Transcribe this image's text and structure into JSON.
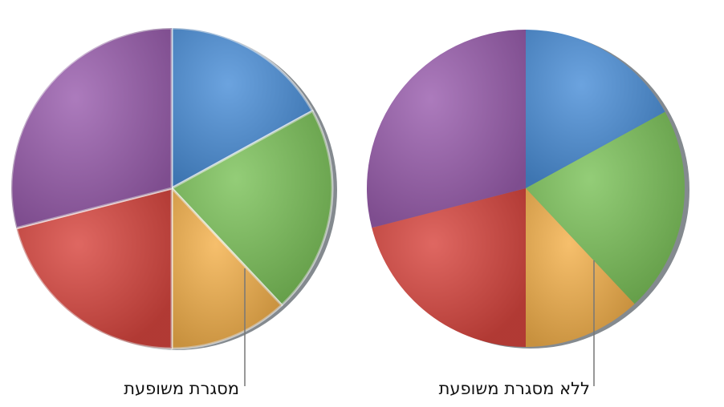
{
  "chart_data": [
    {
      "type": "pie",
      "annotation": "מסגרת משופעת",
      "bevel": true,
      "values": [
        17,
        21,
        12,
        21,
        29
      ],
      "colors": [
        "#4b8fd8",
        "#7cc25a",
        "#f4b14c",
        "#d8463f",
        "#9a5eae"
      ]
    },
    {
      "type": "pie",
      "annotation": "ללא מסגרת משופעת",
      "bevel": false,
      "values": [
        17,
        21,
        12,
        21,
        29
      ],
      "colors": [
        "#4b8fd8",
        "#7cc25a",
        "#f4b14c",
        "#d8463f",
        "#9a5eae"
      ]
    }
  ]
}
